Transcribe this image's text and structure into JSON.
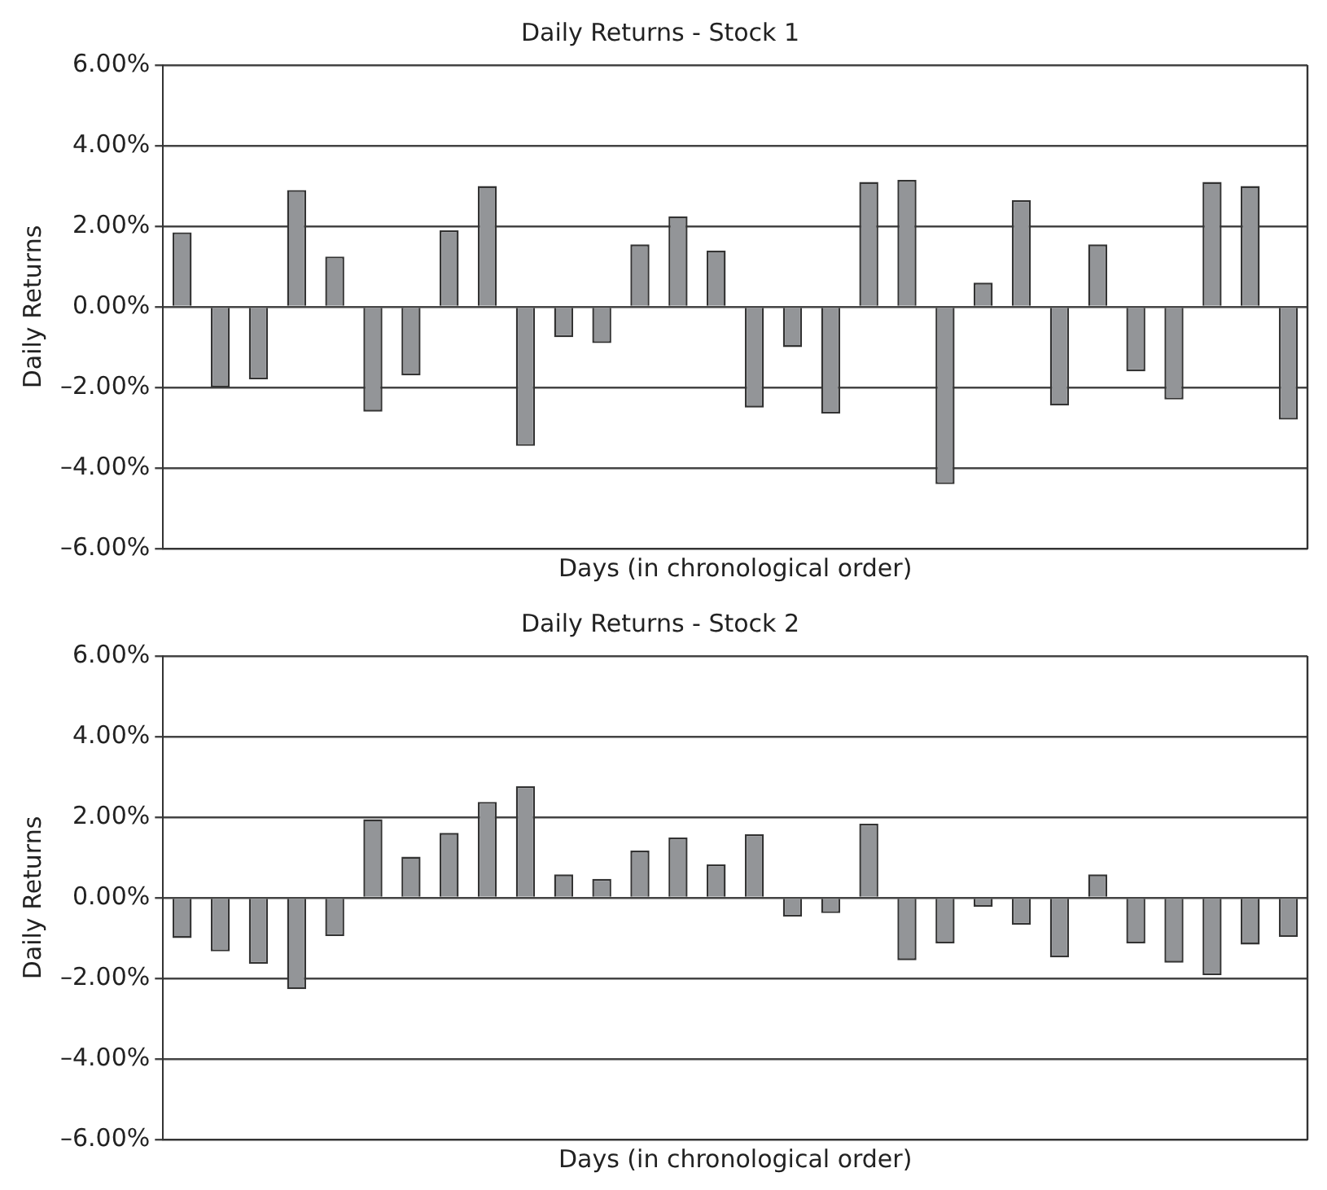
{
  "chart_data": [
    {
      "type": "bar",
      "title": "Daily Returns - Stock 1",
      "xlabel": "Days (in chronological order)",
      "ylabel": "Daily Returns",
      "categories": [
        null,
        null,
        null,
        null,
        null,
        null,
        null,
        null,
        null,
        null,
        null,
        null,
        null,
        null,
        null,
        null,
        null,
        null,
        null,
        null,
        null,
        null,
        null,
        null,
        null,
        null,
        null,
        null,
        null,
        null
      ],
      "values": [
        1.85,
        -2.0,
        -1.8,
        2.9,
        1.25,
        -2.6,
        -1.7,
        1.9,
        3.0,
        -3.45,
        -0.75,
        -0.9,
        1.55,
        2.25,
        1.4,
        -2.5,
        -1.0,
        -2.65,
        3.1,
        3.15,
        -4.4,
        0.6,
        2.65,
        -2.45,
        1.55,
        -1.6,
        -2.3,
        3.1,
        3.0,
        -2.8
      ],
      "color": "#939598",
      "ylim": [
        -6,
        6
      ],
      "yticks": [
        {
          "value": -6,
          "label": "–6.00%"
        },
        {
          "value": -4,
          "label": "–4.00%"
        },
        {
          "value": -2,
          "label": "–2.00%"
        },
        {
          "value": 0,
          "label": "0.00%"
        },
        {
          "value": 2,
          "label": "2.00%"
        },
        {
          "value": 4,
          "label": "4.00%"
        },
        {
          "value": 6,
          "label": "6.00%"
        }
      ],
      "grid": "y",
      "tick_labels": "y"
    },
    {
      "type": "bar",
      "title": "Daily Returns - Stock 2",
      "xlabel": "Days (in chronological order)",
      "ylabel": "Daily Returns",
      "categories": [
        null,
        null,
        null,
        null,
        null,
        null,
        null,
        null,
        null,
        null,
        null,
        null,
        null,
        null,
        null,
        null,
        null,
        null,
        null,
        null,
        null,
        null,
        null,
        null,
        null,
        null,
        null,
        null,
        null,
        null
      ],
      "values": [
        -1.0,
        -1.33,
        -1.64,
        -2.27,
        -0.95,
        1.95,
        1.02,
        1.61,
        2.38,
        2.77,
        0.58,
        0.47,
        1.17,
        1.5,
        0.83,
        1.58,
        -0.47,
        -0.38,
        1.84,
        -1.55,
        -1.13,
        -0.22,
        -0.67,
        -1.48,
        0.58,
        -1.13,
        -1.61,
        -1.92,
        -1.16,
        -0.97
      ],
      "color": "#939598",
      "ylim": [
        -6,
        6
      ],
      "yticks": [
        {
          "value": -6,
          "label": "–6.00%"
        },
        {
          "value": -4,
          "label": "–4.00%"
        },
        {
          "value": -2,
          "label": "–2.00%"
        },
        {
          "value": 0,
          "label": "0.00%"
        },
        {
          "value": 2,
          "label": "2.00%"
        },
        {
          "value": 4,
          "label": "4.00%"
        },
        {
          "value": 6,
          "label": "6.00%"
        }
      ],
      "grid": "y",
      "tick_labels": "y"
    }
  ]
}
